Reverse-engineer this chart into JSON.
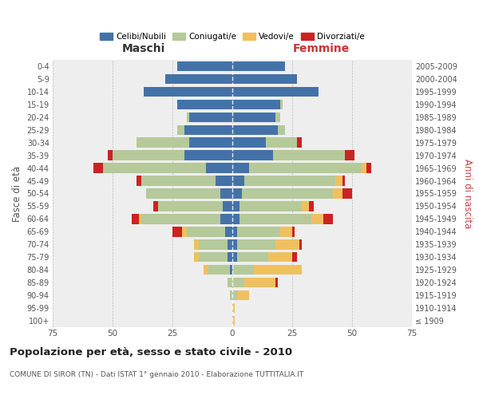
{
  "age_groups": [
    "100+",
    "95-99",
    "90-94",
    "85-89",
    "80-84",
    "75-79",
    "70-74",
    "65-69",
    "60-64",
    "55-59",
    "50-54",
    "45-49",
    "40-44",
    "35-39",
    "30-34",
    "25-29",
    "20-24",
    "15-19",
    "10-14",
    "5-9",
    "0-4"
  ],
  "birth_years": [
    "≤ 1909",
    "1910-1914",
    "1915-1919",
    "1920-1924",
    "1925-1929",
    "1930-1934",
    "1935-1939",
    "1940-1944",
    "1945-1949",
    "1950-1954",
    "1955-1959",
    "1960-1964",
    "1965-1969",
    "1970-1974",
    "1975-1979",
    "1980-1984",
    "1985-1989",
    "1990-1994",
    "1995-1999",
    "2000-2004",
    "2005-2009"
  ],
  "colors": {
    "celibi": "#4472a8",
    "coniugati": "#b5c99a",
    "vedovi": "#f0c060",
    "divorziati": "#cc2222"
  },
  "maschi": {
    "celibi": [
      0,
      0,
      0,
      0,
      1,
      2,
      2,
      3,
      5,
      4,
      5,
      7,
      11,
      20,
      18,
      20,
      18,
      23,
      37,
      28,
      23
    ],
    "coniugati": [
      0,
      0,
      1,
      2,
      9,
      12,
      12,
      16,
      33,
      27,
      31,
      31,
      43,
      30,
      22,
      3,
      1,
      0,
      0,
      0,
      0
    ],
    "vedovi": [
      0,
      0,
      0,
      0,
      2,
      2,
      2,
      2,
      1,
      0,
      0,
      0,
      0,
      0,
      0,
      0,
      0,
      0,
      0,
      0,
      0
    ],
    "divorziati": [
      0,
      0,
      0,
      0,
      0,
      0,
      0,
      4,
      3,
      2,
      0,
      2,
      4,
      2,
      0,
      0,
      0,
      0,
      0,
      0,
      0
    ]
  },
  "femmine": {
    "celibi": [
      0,
      0,
      0,
      0,
      0,
      2,
      2,
      2,
      3,
      3,
      4,
      5,
      7,
      17,
      14,
      19,
      18,
      20,
      36,
      27,
      22
    ],
    "coniugati": [
      0,
      0,
      2,
      5,
      9,
      13,
      16,
      18,
      30,
      26,
      38,
      38,
      47,
      30,
      13,
      3,
      2,
      1,
      0,
      0,
      0
    ],
    "vedovi": [
      1,
      1,
      5,
      13,
      20,
      10,
      10,
      5,
      5,
      3,
      4,
      3,
      2,
      0,
      0,
      0,
      0,
      0,
      0,
      0,
      0
    ],
    "divorziati": [
      0,
      0,
      0,
      1,
      0,
      2,
      1,
      1,
      4,
      2,
      4,
      1,
      2,
      4,
      2,
      0,
      0,
      0,
      0,
      0,
      0
    ]
  },
  "xlim": 75,
  "title": "Popolazione per età, sesso e stato civile - 2010",
  "subtitle": "COMUNE DI SIROR (TN) - Dati ISTAT 1° gennaio 2010 - Elaborazione TUTTITALIA.IT",
  "ylabel_left": "Fasce di età",
  "ylabel_right": "Anni di nascita",
  "xlabel_left": "Maschi",
  "xlabel_right": "Femmine",
  "legend_labels": [
    "Celibi/Nubili",
    "Coniugati/e",
    "Vedovi/e",
    "Divorziati/e"
  ],
  "bg_color": "#ffffff",
  "plot_bg_color": "#eeeeee"
}
